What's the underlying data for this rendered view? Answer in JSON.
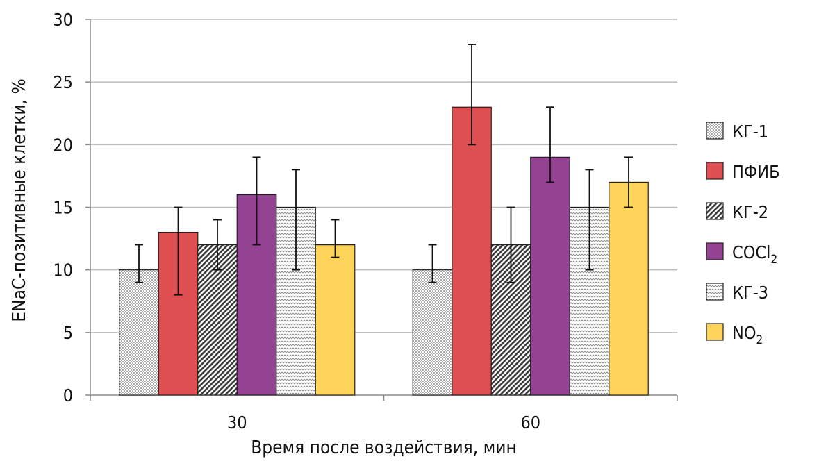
{
  "chart_data": {
    "type": "bar",
    "xlabel": "Время после воздействия, мин",
    "ylabel": "ENaC-позитивные клетки, %",
    "ylim": [
      0,
      30
    ],
    "yticks": [
      0,
      5,
      10,
      15,
      20,
      25,
      30
    ],
    "ytick_labels": [
      "0",
      "5",
      "10",
      "15",
      "20",
      "25",
      "30"
    ],
    "categories": [
      "30",
      "60"
    ],
    "grid": true,
    "legend_position": "right",
    "series": [
      {
        "name": "КГ-1",
        "label_main": "КГ-1",
        "label_sub": "",
        "fill": "dots",
        "color": "#ffffff",
        "values": [
          10,
          10
        ],
        "err_low": [
          9,
          9
        ],
        "err_high": [
          12,
          12
        ]
      },
      {
        "name": "ПФИБ",
        "label_main": "ПФИБ",
        "label_sub": "",
        "fill": "solid",
        "color": "#de4f51",
        "values": [
          13,
          23
        ],
        "err_low": [
          8,
          20
        ],
        "err_high": [
          15,
          28
        ]
      },
      {
        "name": "КГ-2",
        "label_main": "КГ-2",
        "label_sub": "",
        "fill": "hatch",
        "color": "#ffffff",
        "values": [
          12,
          12
        ],
        "err_low": [
          10,
          9
        ],
        "err_high": [
          14,
          15
        ]
      },
      {
        "name": "COCl2",
        "label_main": "COCl",
        "label_sub": "2",
        "fill": "solid",
        "color": "#944393",
        "values": [
          16,
          19
        ],
        "err_low": [
          12,
          17
        ],
        "err_high": [
          19,
          23
        ]
      },
      {
        "name": "КГ-3",
        "label_main": "КГ-3",
        "label_sub": "",
        "fill": "zigzag",
        "color": "#ffffff",
        "values": [
          15,
          15
        ],
        "err_low": [
          10,
          10
        ],
        "err_high": [
          18,
          18
        ]
      },
      {
        "name": "NO2",
        "label_main": "NO",
        "label_sub": "2",
        "fill": "solid",
        "color": "#fdd35a",
        "values": [
          12,
          17
        ],
        "err_low": [
          11,
          15
        ],
        "err_high": [
          14,
          19
        ]
      }
    ]
  }
}
